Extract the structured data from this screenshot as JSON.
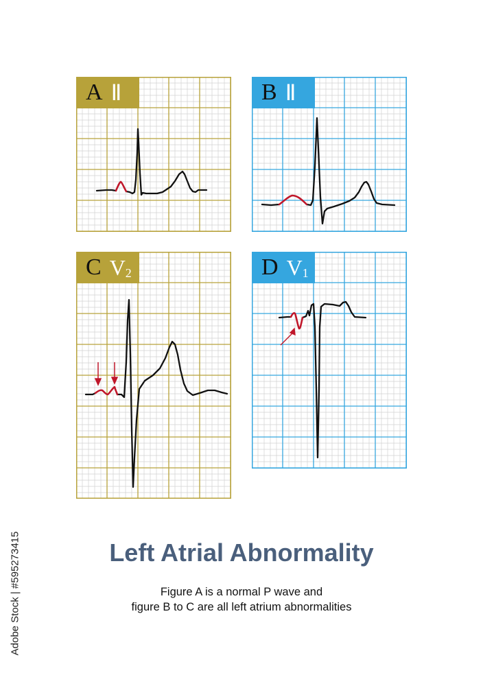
{
  "colors": {
    "gold": "#b7a23a",
    "blue": "#35a6df",
    "minor_grid": "#d2d2d2",
    "trace": "#111111",
    "p_wave": "#c0172a",
    "title": "#4a5f7c"
  },
  "panels": [
    {
      "id": "A",
      "letter": "A",
      "lead": "Ⅱ",
      "lead_sub": "",
      "theme": "gold"
    },
    {
      "id": "B",
      "letter": "B",
      "lead": "Ⅱ",
      "lead_sub": "",
      "theme": "blue"
    },
    {
      "id": "C",
      "letter": "C",
      "lead": "V",
      "lead_sub": "2",
      "theme": "gold"
    },
    {
      "id": "D",
      "letter": "D",
      "lead": "V",
      "lead_sub": "1",
      "theme": "blue"
    }
  ],
  "title": "Left Atrial Abnormality",
  "caption": {
    "line1": "Figure A is a normal P wave and",
    "line2": "figure B to C are all left atrium abnormalities"
  },
  "watermark": "Adobe Stock | #595273415"
}
